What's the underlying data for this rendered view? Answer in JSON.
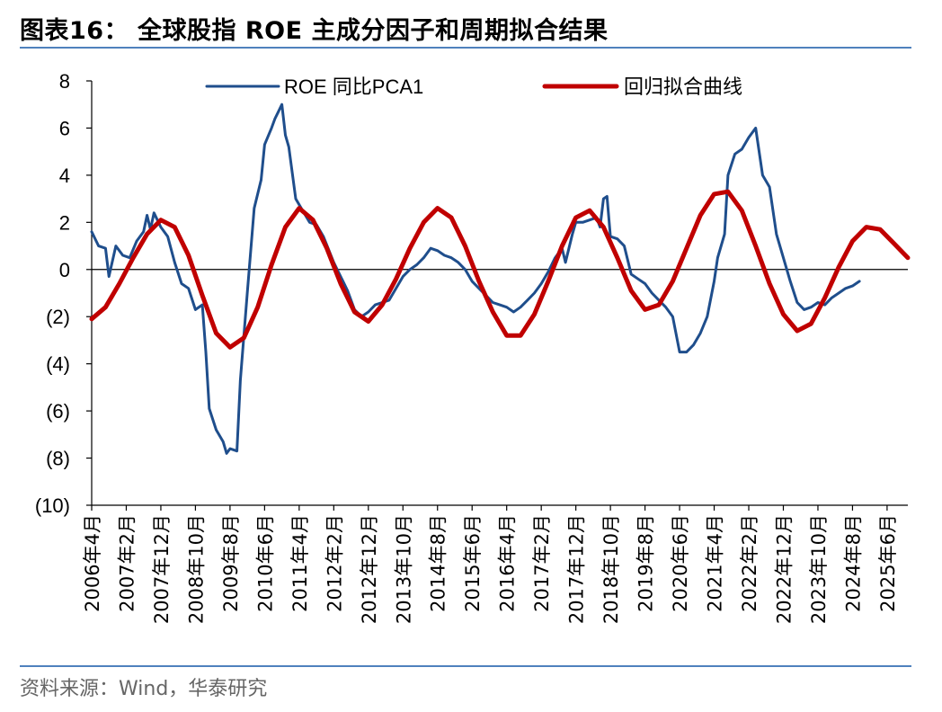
{
  "title": "图表16：  全球股指 ROE 主成分因子和周期拟合结果",
  "source": "资料来源：Wind，华泰研究",
  "colors": {
    "accent": "#4f81bd",
    "series_blue": "#1f4e8c",
    "series_red": "#c00000"
  },
  "chart_data": {
    "type": "line",
    "title": "",
    "ylim": [
      -10,
      8
    ],
    "y_ticks": [
      8,
      6,
      4,
      2,
      0,
      -2,
      -4,
      -6,
      -8,
      -10
    ],
    "y_tick_labels": [
      "8",
      "6",
      "4",
      "2",
      "0",
      "(2)",
      "(4)",
      "(6)",
      "(8)",
      "(10)"
    ],
    "x_range": [
      "2006-04",
      "2025-12"
    ],
    "x_ticks": [
      "2006-04",
      "2007-02",
      "2007-12",
      "2008-10",
      "2009-08",
      "2010-06",
      "2011-04",
      "2012-02",
      "2012-12",
      "2013-10",
      "2014-08",
      "2015-06",
      "2016-04",
      "2017-02",
      "2017-12",
      "2018-10",
      "2019-08",
      "2020-06",
      "2021-04",
      "2022-02",
      "2022-12",
      "2023-10",
      "2024-08",
      "2025-06"
    ],
    "x_tick_labels": [
      "2006年4月",
      "2007年2月",
      "2007年12月",
      "2008年10月",
      "2009年8月",
      "2010年6月",
      "2011年4月",
      "2012年2月",
      "2012年12月",
      "2013年10月",
      "2014年8月",
      "2015年6月",
      "2016年4月",
      "2017年2月",
      "2017年12月",
      "2018年10月",
      "2019年8月",
      "2020年6月",
      "2021年4月",
      "2022年2月",
      "2022年12月",
      "2023年10月",
      "2024年8月",
      "2025年6月"
    ],
    "legend_position": "top",
    "series": [
      {
        "name": "ROE 同比PCA1",
        "color": "#1f4e8c",
        "points": [
          [
            "2006-04",
            1.6
          ],
          [
            "2006-06",
            1.0
          ],
          [
            "2006-08",
            0.9
          ],
          [
            "2006-09",
            -0.3
          ],
          [
            "2006-11",
            1.0
          ],
          [
            "2007-01",
            0.6
          ],
          [
            "2007-03",
            0.5
          ],
          [
            "2007-05",
            1.2
          ],
          [
            "2007-07",
            1.6
          ],
          [
            "2007-08",
            2.3
          ],
          [
            "2007-09",
            1.7
          ],
          [
            "2007-10",
            2.4
          ],
          [
            "2007-12",
            1.8
          ],
          [
            "2008-02",
            1.4
          ],
          [
            "2008-04",
            0.3
          ],
          [
            "2008-06",
            -0.6
          ],
          [
            "2008-08",
            -0.8
          ],
          [
            "2008-10",
            -1.7
          ],
          [
            "2008-12",
            -1.5
          ],
          [
            "2009-01",
            -3.5
          ],
          [
            "2009-02",
            -5.9
          ],
          [
            "2009-04",
            -6.8
          ],
          [
            "2009-06",
            -7.3
          ],
          [
            "2009-07",
            -7.8
          ],
          [
            "2009-08",
            -7.6
          ],
          [
            "2009-10",
            -7.7
          ],
          [
            "2009-11",
            -4.7
          ],
          [
            "2010-01",
            -1.0
          ],
          [
            "2010-03",
            2.6
          ],
          [
            "2010-05",
            3.8
          ],
          [
            "2010-06",
            5.3
          ],
          [
            "2010-08",
            6.0
          ],
          [
            "2010-09",
            6.4
          ],
          [
            "2010-10",
            6.7
          ],
          [
            "2010-11",
            7.0
          ],
          [
            "2010-12",
            5.7
          ],
          [
            "2011-01",
            5.2
          ],
          [
            "2011-03",
            3.0
          ],
          [
            "2011-05",
            2.5
          ],
          [
            "2011-07",
            2.0
          ],
          [
            "2011-09",
            1.9
          ],
          [
            "2011-11",
            1.4
          ],
          [
            "2012-02",
            0.3
          ],
          [
            "2012-04",
            -0.3
          ],
          [
            "2012-06",
            -0.9
          ],
          [
            "2012-08",
            -1.7
          ],
          [
            "2012-10",
            -2.0
          ],
          [
            "2012-12",
            -1.8
          ],
          [
            "2013-02",
            -1.5
          ],
          [
            "2013-04",
            -1.4
          ],
          [
            "2013-06",
            -1.3
          ],
          [
            "2013-08",
            -0.8
          ],
          [
            "2013-10",
            -0.3
          ],
          [
            "2013-12",
            0.0
          ],
          [
            "2014-02",
            0.2
          ],
          [
            "2014-04",
            0.5
          ],
          [
            "2014-06",
            0.9
          ],
          [
            "2014-08",
            0.8
          ],
          [
            "2014-10",
            0.6
          ],
          [
            "2014-12",
            0.5
          ],
          [
            "2015-02",
            0.3
          ],
          [
            "2015-04",
            0.0
          ],
          [
            "2015-06",
            -0.5
          ],
          [
            "2015-08",
            -0.8
          ],
          [
            "2015-10",
            -1.1
          ],
          [
            "2015-12",
            -1.4
          ],
          [
            "2016-02",
            -1.5
          ],
          [
            "2016-04",
            -1.6
          ],
          [
            "2016-06",
            -1.8
          ],
          [
            "2016-08",
            -1.6
          ],
          [
            "2016-10",
            -1.3
          ],
          [
            "2016-12",
            -1.0
          ],
          [
            "2017-02",
            -0.6
          ],
          [
            "2017-04",
            -0.1
          ],
          [
            "2017-06",
            0.5
          ],
          [
            "2017-08",
            0.9
          ],
          [
            "2017-09",
            0.3
          ],
          [
            "2017-11",
            1.5
          ],
          [
            "2017-12",
            2.0
          ],
          [
            "2018-02",
            2.0
          ],
          [
            "2018-04",
            2.1
          ],
          [
            "2018-06",
            2.2
          ],
          [
            "2018-07",
            1.8
          ],
          [
            "2018-08",
            3.0
          ],
          [
            "2018-09",
            3.1
          ],
          [
            "2018-10",
            1.4
          ],
          [
            "2018-12",
            1.3
          ],
          [
            "2019-02",
            1.0
          ],
          [
            "2019-04",
            -0.2
          ],
          [
            "2019-06",
            -0.4
          ],
          [
            "2019-08",
            -0.6
          ],
          [
            "2019-10",
            -1.0
          ],
          [
            "2019-12",
            -1.3
          ],
          [
            "2020-02",
            -1.6
          ],
          [
            "2020-04",
            -2.0
          ],
          [
            "2020-06",
            -3.5
          ],
          [
            "2020-08",
            -3.5
          ],
          [
            "2020-10",
            -3.2
          ],
          [
            "2020-12",
            -2.7
          ],
          [
            "2021-02",
            -2.0
          ],
          [
            "2021-04",
            -0.5
          ],
          [
            "2021-05",
            0.5
          ],
          [
            "2021-07",
            1.5
          ],
          [
            "2021-08",
            4.0
          ],
          [
            "2021-10",
            4.9
          ],
          [
            "2021-12",
            5.1
          ],
          [
            "2022-02",
            5.6
          ],
          [
            "2022-04",
            6.0
          ],
          [
            "2022-06",
            4.0
          ],
          [
            "2022-08",
            3.5
          ],
          [
            "2022-10",
            1.5
          ],
          [
            "2022-12",
            0.5
          ],
          [
            "2023-02",
            -0.5
          ],
          [
            "2023-04",
            -1.4
          ],
          [
            "2023-06",
            -1.7
          ],
          [
            "2023-08",
            -1.6
          ],
          [
            "2023-10",
            -1.4
          ],
          [
            "2023-12",
            -1.5
          ],
          [
            "2024-02",
            -1.2
          ],
          [
            "2024-04",
            -1.0
          ],
          [
            "2024-06",
            -0.8
          ],
          [
            "2024-08",
            -0.7
          ],
          [
            "2024-10",
            -0.5
          ]
        ]
      },
      {
        "name": "回归拟合曲线",
        "color": "#c00000",
        "points": [
          [
            "2006-04",
            -2.1
          ],
          [
            "2006-08",
            -1.6
          ],
          [
            "2006-12",
            -0.6
          ],
          [
            "2007-04",
            0.5
          ],
          [
            "2007-08",
            1.5
          ],
          [
            "2007-12",
            2.1
          ],
          [
            "2008-04",
            1.8
          ],
          [
            "2008-08",
            0.6
          ],
          [
            "2008-12",
            -1.1
          ],
          [
            "2009-04",
            -2.7
          ],
          [
            "2009-08",
            -3.3
          ],
          [
            "2009-12",
            -2.9
          ],
          [
            "2010-04",
            -1.6
          ],
          [
            "2010-08",
            0.2
          ],
          [
            "2010-12",
            1.8
          ],
          [
            "2011-04",
            2.6
          ],
          [
            "2011-08",
            2.1
          ],
          [
            "2011-12",
            0.9
          ],
          [
            "2012-04",
            -0.6
          ],
          [
            "2012-08",
            -1.8
          ],
          [
            "2012-12",
            -2.2
          ],
          [
            "2013-04",
            -1.5
          ],
          [
            "2013-08",
            -0.4
          ],
          [
            "2013-12",
            0.9
          ],
          [
            "2014-04",
            2.0
          ],
          [
            "2014-08",
            2.6
          ],
          [
            "2014-12",
            2.2
          ],
          [
            "2015-04",
            1.0
          ],
          [
            "2015-08",
            -0.5
          ],
          [
            "2015-12",
            -1.8
          ],
          [
            "2016-04",
            -2.8
          ],
          [
            "2016-08",
            -2.8
          ],
          [
            "2016-12",
            -1.9
          ],
          [
            "2017-04",
            -0.5
          ],
          [
            "2017-08",
            1.0
          ],
          [
            "2017-12",
            2.2
          ],
          [
            "2018-04",
            2.5
          ],
          [
            "2018-08",
            1.8
          ],
          [
            "2018-12",
            0.5
          ],
          [
            "2019-04",
            -0.9
          ],
          [
            "2019-08",
            -1.7
          ],
          [
            "2019-12",
            -1.5
          ],
          [
            "2020-04",
            -0.5
          ],
          [
            "2020-08",
            0.9
          ],
          [
            "2020-12",
            2.3
          ],
          [
            "2021-04",
            3.2
          ],
          [
            "2021-08",
            3.3
          ],
          [
            "2021-12",
            2.5
          ],
          [
            "2022-04",
            1.0
          ],
          [
            "2022-08",
            -0.6
          ],
          [
            "2022-12",
            -1.9
          ],
          [
            "2023-04",
            -2.6
          ],
          [
            "2023-08",
            -2.3
          ],
          [
            "2023-12",
            -1.2
          ],
          [
            "2024-04",
            0.1
          ],
          [
            "2024-08",
            1.2
          ],
          [
            "2024-12",
            1.8
          ],
          [
            "2025-04",
            1.7
          ],
          [
            "2025-08",
            1.1
          ],
          [
            "2025-12",
            0.5
          ]
        ]
      }
    ]
  }
}
